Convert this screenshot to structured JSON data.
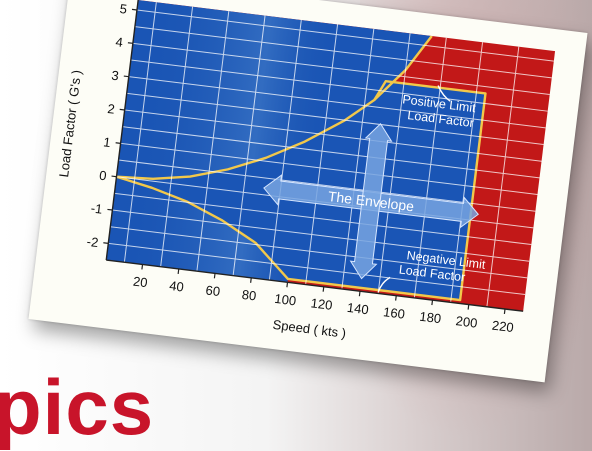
{
  "chart_data": {
    "type": "area",
    "xlabel": "Speed ( kts )",
    "ylabel": "Load Factor ( G's )",
    "x_ticks": [
      20,
      40,
      60,
      80,
      100,
      120,
      140,
      160,
      180,
      200,
      220
    ],
    "y_ticks": [
      -2,
      -1,
      0,
      1,
      2,
      3,
      4,
      5
    ],
    "xlim": [
      0,
      230
    ],
    "ylim": [
      -2.5,
      5.3
    ],
    "grid": true,
    "positive_stall_curve": {
      "x": [
        0,
        20,
        40,
        60,
        80,
        100,
        120,
        135
      ],
      "y": [
        0,
        0.07,
        0.27,
        0.62,
        1.1,
        1.72,
        2.48,
        3.2
      ]
    },
    "positive_stall_curve_continued": {
      "x": [
        135,
        150,
        162
      ],
      "y": [
        3.2,
        4.2,
        5.3
      ]
    },
    "negative_stall_curve": {
      "x": [
        0,
        20,
        40,
        60,
        80,
        100
      ],
      "y": [
        0,
        -0.2,
        -0.48,
        -0.9,
        -1.45,
        -2.4
      ]
    },
    "positive_limit_load_factor": 3.8,
    "negative_limit_load_factor": -2.4,
    "limit_speed": 195,
    "annotations": {
      "positive_limit": [
        "Positive Limit",
        "Load Factor"
      ],
      "negative_limit": [
        "Negative Limit",
        "Load Factor"
      ],
      "envelope": "The Envelope"
    },
    "colors": {
      "envelope": "#1a55b5",
      "outside": "#c21818",
      "boundary": "#f2c84a",
      "grid": "#ffffff"
    }
  },
  "background_word": "pics"
}
